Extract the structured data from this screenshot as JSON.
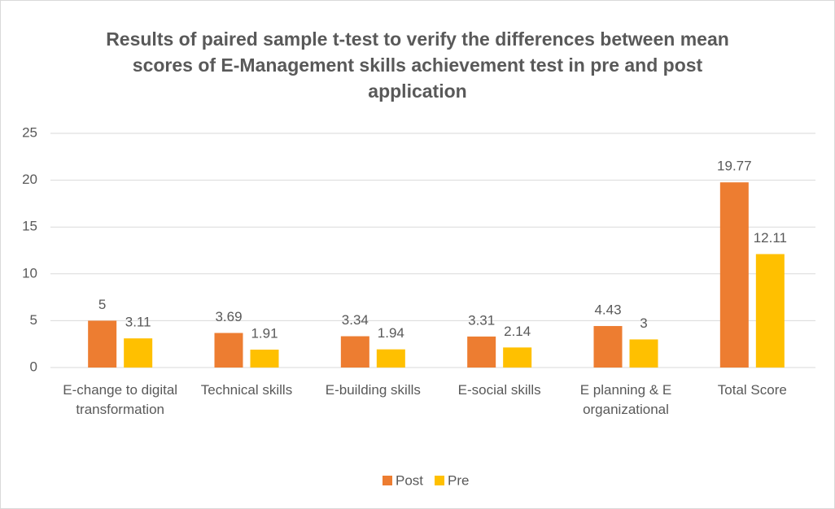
{
  "chart_data": {
    "type": "bar",
    "title": "Results of paired sample t-test to verify the differences between mean scores of E-Management skills achievement test in pre and post application",
    "categories": [
      "E-change to digital transformation",
      "Technical skills",
      "E-building skills",
      "E-social skills",
      "E planning & E organizational",
      "Total Score"
    ],
    "series": [
      {
        "name": "Post",
        "color": "#ed7d31",
        "values": [
          5,
          3.69,
          3.34,
          3.31,
          4.43,
          19.77
        ]
      },
      {
        "name": "Pre",
        "color": "#ffc000",
        "values": [
          3.11,
          1.91,
          1.94,
          2.14,
          3,
          12.11
        ]
      }
    ],
    "ylim": [
      0,
      25
    ],
    "yticks": [
      0,
      5,
      10,
      15,
      20,
      25
    ],
    "grid": true,
    "legend": "bottom"
  }
}
